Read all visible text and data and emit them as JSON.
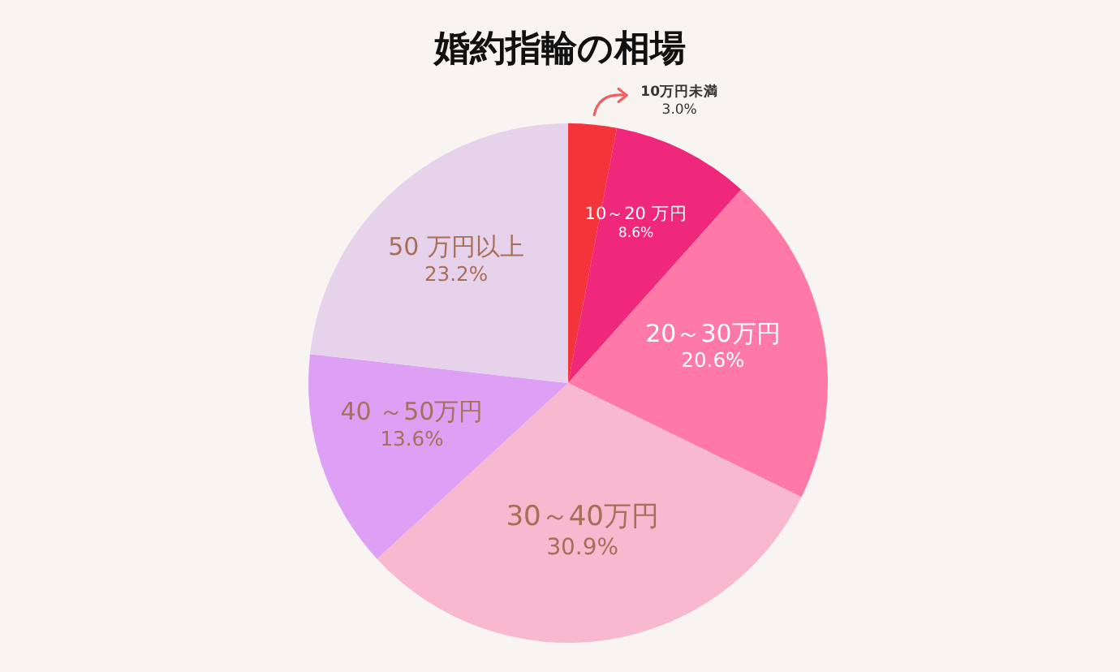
{
  "chart_data": {
    "type": "pie",
    "title": "婚約指輪の相場",
    "categories": [
      "10万円未満",
      "10～20 万円",
      "20～30万円",
      "30～40万円",
      "40 ～50万円",
      "50 万円以上"
    ],
    "values": [
      3.0,
      8.6,
      20.6,
      30.9,
      13.6,
      23.2
    ],
    "colors": [
      "#f5333a",
      "#f0287c",
      "#fe78a8",
      "#f8b8d0",
      "#dda0f5",
      "#e6d3eb"
    ],
    "value_labels": [
      "3.0%",
      "8.6%",
      "20.6%",
      "30.9%",
      "13.6%",
      "23.2%"
    ]
  }
}
